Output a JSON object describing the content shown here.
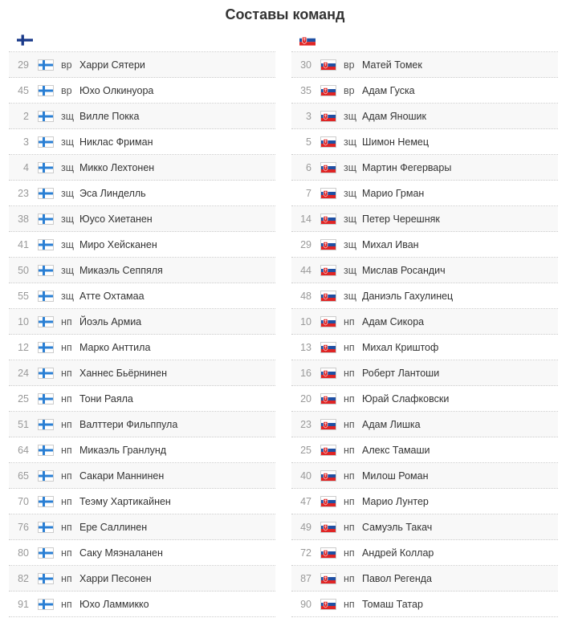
{
  "title": "Составы команд",
  "teams": [
    {
      "flag": "finland-flag-icon",
      "players": [
        {
          "num": "29",
          "pos": "вр",
          "name": "Харри Сятери"
        },
        {
          "num": "45",
          "pos": "вр",
          "name": "Юхо Олкинуора"
        },
        {
          "num": "2",
          "pos": "зщ",
          "name": "Вилле Покка"
        },
        {
          "num": "3",
          "pos": "зщ",
          "name": "Никлас Фриман"
        },
        {
          "num": "4",
          "pos": "зщ",
          "name": "Микко Лехтонен"
        },
        {
          "num": "23",
          "pos": "зщ",
          "name": "Эса Линделль"
        },
        {
          "num": "38",
          "pos": "зщ",
          "name": "Юусо Хиетанен"
        },
        {
          "num": "41",
          "pos": "зщ",
          "name": "Миро Хейсканен"
        },
        {
          "num": "50",
          "pos": "зщ",
          "name": "Микаэль Сеппяля"
        },
        {
          "num": "55",
          "pos": "зщ",
          "name": "Атте Охтамаа"
        },
        {
          "num": "10",
          "pos": "нп",
          "name": "Йоэль Армиа"
        },
        {
          "num": "12",
          "pos": "нп",
          "name": "Марко Анттила"
        },
        {
          "num": "24",
          "pos": "нп",
          "name": "Ханнес Бьёрнинен"
        },
        {
          "num": "25",
          "pos": "нп",
          "name": "Тони Раяла"
        },
        {
          "num": "51",
          "pos": "нп",
          "name": "Валттери Фильппула"
        },
        {
          "num": "64",
          "pos": "нп",
          "name": "Микаэль Гранлунд"
        },
        {
          "num": "65",
          "pos": "нп",
          "name": "Сакари Маннинен"
        },
        {
          "num": "70",
          "pos": "нп",
          "name": "Теэму Хартикайнен"
        },
        {
          "num": "76",
          "pos": "нп",
          "name": "Ере Саллинен"
        },
        {
          "num": "80",
          "pos": "нп",
          "name": "Саку Мяэналанен"
        },
        {
          "num": "82",
          "pos": "нп",
          "name": "Харри Песонен"
        },
        {
          "num": "91",
          "pos": "нп",
          "name": "Юхо Ламмикко"
        }
      ]
    },
    {
      "flag": "slovakia-flag-icon",
      "players": [
        {
          "num": "30",
          "pos": "вр",
          "name": "Матей Томек"
        },
        {
          "num": "35",
          "pos": "вр",
          "name": "Адам Гуска"
        },
        {
          "num": "3",
          "pos": "зщ",
          "name": "Адам Яношик"
        },
        {
          "num": "5",
          "pos": "зщ",
          "name": "Шимон Немец"
        },
        {
          "num": "6",
          "pos": "зщ",
          "name": "Мартин Фегервары"
        },
        {
          "num": "7",
          "pos": "зщ",
          "name": "Марио Грман"
        },
        {
          "num": "14",
          "pos": "зщ",
          "name": "Петер Черешняк"
        },
        {
          "num": "29",
          "pos": "зщ",
          "name": "Михал Иван"
        },
        {
          "num": "44",
          "pos": "зщ",
          "name": "Мислав Росандич"
        },
        {
          "num": "48",
          "pos": "зщ",
          "name": "Даниэль Гахулинец"
        },
        {
          "num": "10",
          "pos": "нп",
          "name": "Адам Сикора"
        },
        {
          "num": "13",
          "pos": "нп",
          "name": "Михал Криштоф"
        },
        {
          "num": "16",
          "pos": "нп",
          "name": "Роберт Лантоши"
        },
        {
          "num": "20",
          "pos": "нп",
          "name": "Юрай Слафковски"
        },
        {
          "num": "23",
          "pos": "нп",
          "name": "Адам Лишка"
        },
        {
          "num": "25",
          "pos": "нп",
          "name": "Алекс Тамаши"
        },
        {
          "num": "40",
          "pos": "нп",
          "name": "Милош Роман"
        },
        {
          "num": "47",
          "pos": "нп",
          "name": "Марио Лунтер"
        },
        {
          "num": "49",
          "pos": "нп",
          "name": "Самуэль Такач"
        },
        {
          "num": "72",
          "pos": "нп",
          "name": "Андрей Коллар"
        },
        {
          "num": "87",
          "pos": "нп",
          "name": "Павол Регенда"
        },
        {
          "num": "90",
          "pos": "нп",
          "name": "Томаш Татар"
        }
      ]
    }
  ],
  "colors": {
    "finland_blue": "#2a7fd4",
    "slovakia_blue": "#1f4fa3",
    "slovakia_red": "#e02424"
  }
}
